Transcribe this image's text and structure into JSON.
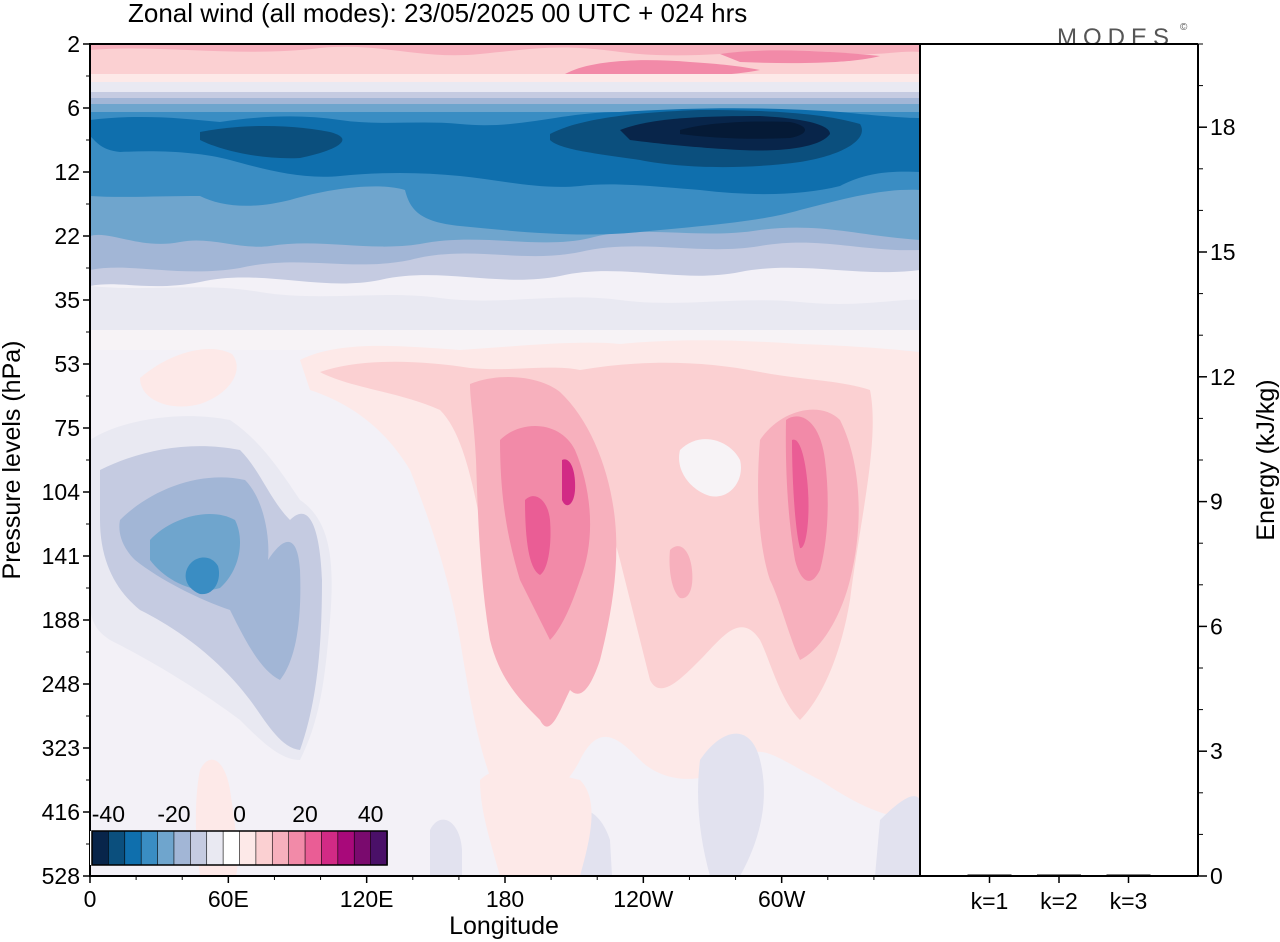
{
  "title": "Zonal wind (all modes):  23/05/2025  00 UTC  + 024 hrs",
  "brand": "MODES",
  "brand_mark": "©",
  "chart_data": [
    {
      "type": "heatmap",
      "title": "Zonal wind (all modes):  23/05/2025  00 UTC  + 024 hrs",
      "xlabel": "Longitude",
      "ylabel": "Pressure levels (hPa)",
      "x_ticks": [
        "0",
        "60E",
        "120E",
        "180",
        "120W",
        "60W"
      ],
      "x_tick_positions_deg": [
        0,
        60,
        120,
        180,
        240,
        300
      ],
      "xlim_deg": [
        0,
        360
      ],
      "y_ticks": [
        "2",
        "6",
        "12",
        "22",
        "35",
        "53",
        "75",
        "104",
        "141",
        "188",
        "248",
        "323",
        "416",
        "528"
      ],
      "y_scale": "model levels (uneven pressure spacing)",
      "colorbar": {
        "tick_labels": [
          "-40",
          "-20",
          "0",
          "20",
          "40"
        ],
        "tick_values": [
          -40,
          -20,
          0,
          20,
          40
        ],
        "range": [
          -45,
          45
        ],
        "step": 5,
        "colors": [
          "#08254a",
          "#0b4f7d",
          "#0f6fad",
          "#3a8dc3",
          "#6fa5cd",
          "#a2b6d6",
          "#c5cbe1",
          "#e9e9f2",
          "#ffffff",
          "#fde9e8",
          "#fbd0d2",
          "#f7b0bd",
          "#f28aa8",
          "#ea5d95",
          "#d22a85",
          "#a8097a",
          "#7a0a6e",
          "#4a1068"
        ]
      },
      "regions": [
        {
          "name": "upper stratospheric easterly core (near 6-12 hPa, 120W-40W)",
          "lon": [
            245,
            320
          ],
          "level": "8",
          "value": -45
        },
        {
          "name": "stratospheric easterly band (6-22 hPa)",
          "lon": [
            0,
            360
          ],
          "level": "12",
          "value": -30
        },
        {
          "name": "westerlies at top levels (2-4 hPa)",
          "lon": [
            0,
            360
          ],
          "level": "2",
          "value": 10
        },
        {
          "name": "westerly jet near 170W (104-141 hPa)",
          "lon": [
            180,
            210
          ],
          "level": "120",
          "value": 25
        },
        {
          "name": "westerly jet near 70W (104-141 hPa)",
          "lon": [
            275,
            310
          ],
          "level": "120",
          "value": 20
        },
        {
          "name": "easterlies over Indian Ocean (104-248 hPa)",
          "lon": [
            10,
            100
          ],
          "level": "141",
          "value": -15
        }
      ]
    },
    {
      "type": "bar",
      "categories": [
        "k=1",
        "k=2",
        "k=3"
      ],
      "values": [
        0.03,
        0.02,
        0.02
      ],
      "ylabel": "Energy (kJ/kg)",
      "ylim": [
        0,
        20
      ],
      "y_ticks": [
        0,
        3,
        6,
        9,
        12,
        15,
        18
      ],
      "y_minor_step": 1,
      "bar_color": "#000000"
    }
  ]
}
